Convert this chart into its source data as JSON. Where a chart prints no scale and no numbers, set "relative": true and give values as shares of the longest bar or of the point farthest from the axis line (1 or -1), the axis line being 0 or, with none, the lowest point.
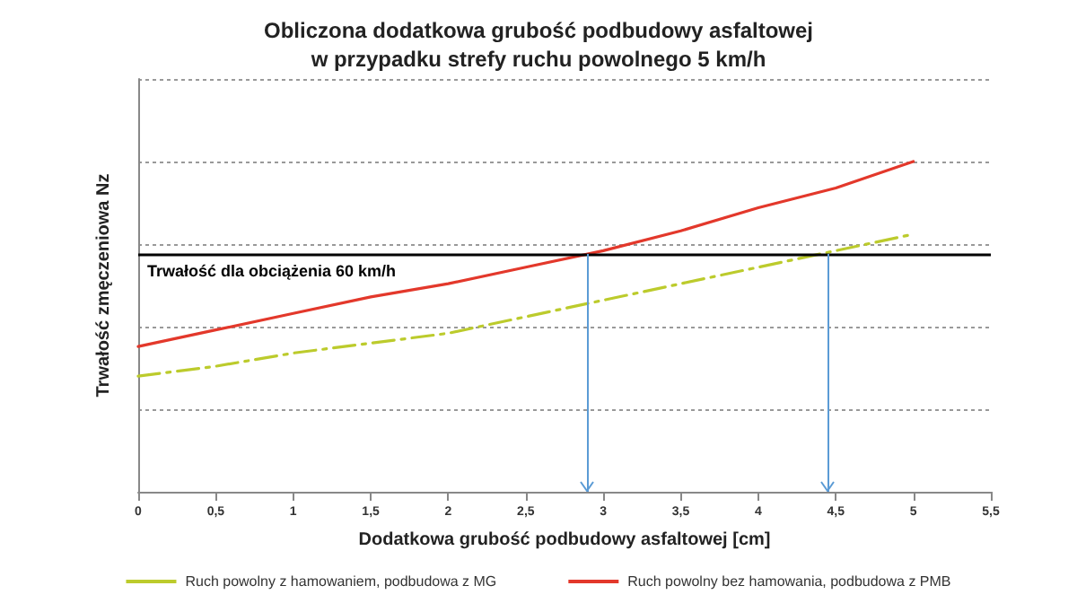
{
  "chart_data": {
    "type": "line",
    "title": "Obliczona dodatkowa grubość podbudowy asfaltowej",
    "subtitle": "w przypadku strefy ruchu powolnego 5 km/h",
    "xlabel": "Dodatkowa grubość podbudowy asfaltowej [cm]",
    "ylabel": "Trwałość zmęczeniowa Nz",
    "relative": true,
    "x": [
      0,
      0.5,
      1,
      1.5,
      2,
      2.5,
      3,
      3.5,
      4,
      4.5,
      5
    ],
    "xlim": [
      0,
      5.5
    ],
    "xticks": [
      0,
      {
        "value": 0.5,
        "label": "0,5"
      },
      1,
      {
        "value": 1.5,
        "label": "1,5"
      },
      2,
      {
        "value": 2.5,
        "label": "2,5"
      },
      3,
      {
        "value": 3.5,
        "label": "3,5"
      },
      4,
      {
        "value": 4.5,
        "label": "4,5"
      },
      5,
      {
        "value": 5.5,
        "label": "5,5"
      }
    ],
    "series": [
      {
        "name": "Ruch powolny z hamowaniem, podbudowa z MG",
        "color": "#bccb2c",
        "line_style": "dashed",
        "values": [
          0.35,
          0.38,
          0.42,
          0.45,
          0.48,
          0.53,
          0.58,
          0.63,
          0.68,
          0.73,
          0.78
        ]
      },
      {
        "name": "Ruch powolny bez hamowania, podbudowa z PMB",
        "color": "#e3382b",
        "line_style": "solid",
        "values": [
          0.44,
          0.49,
          0.54,
          0.59,
          0.63,
          0.68,
          0.73,
          0.79,
          0.86,
          0.92,
          1.0
        ]
      }
    ],
    "ref_lines": [
      {
        "axis": "y",
        "value": 0.72,
        "label": "Trwałość dla obciążenia 60 km/h",
        "color": "#000000"
      },
      {
        "axis": "x",
        "value": 2.9,
        "color": "#5b9bd5"
      },
      {
        "axis": "x",
        "value": 4.45,
        "color": "#5b9bd5"
      }
    ],
    "grid": "y",
    "legend": "bottom",
    "marker": "none"
  }
}
